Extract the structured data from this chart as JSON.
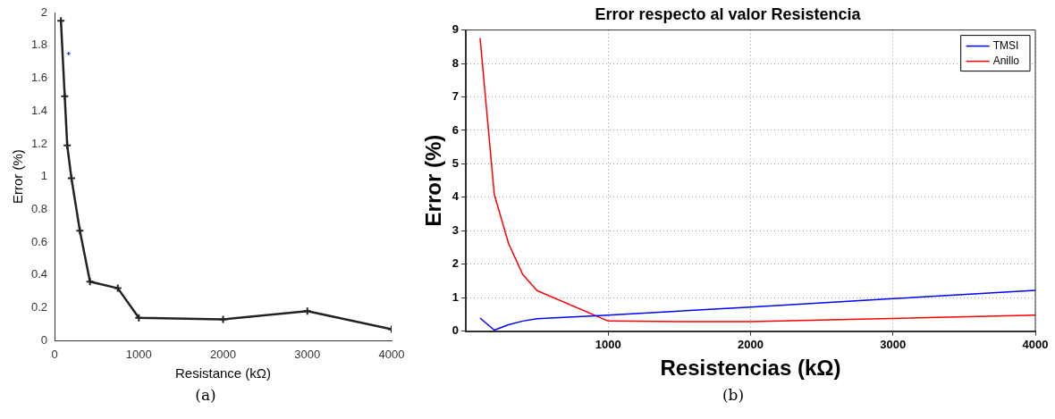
{
  "chart_data": [
    {
      "type": "line",
      "xlabel": "Resistance (kΩ)",
      "ylabel": "Error (%)",
      "xlim": [
        0,
        4000
      ],
      "xticks": [
        0,
        1000,
        2000,
        3000,
        4000
      ],
      "ylim": [
        0,
        2
      ],
      "yticks": [
        0,
        0.2,
        0.4,
        0.6,
        0.8,
        1,
        1.2,
        1.4,
        1.6,
        1.8,
        2
      ],
      "grid": false,
      "legend": false,
      "marker": "cross",
      "annotations": [
        "(a)"
      ],
      "series": [
        {
          "color": "#222222",
          "x": [
            75,
            120,
            150,
            200,
            300,
            420,
            750,
            1000,
            2000,
            3000,
            4000
          ],
          "values": [
            1.95,
            1.49,
            1.19,
            0.99,
            0.67,
            0.36,
            0.32,
            0.14,
            0.13,
            0.18,
            0.07
          ]
        },
        {
          "type": "scatter",
          "color": "#0000ff",
          "x": [
            167
          ],
          "values": [
            1.75
          ]
        }
      ]
    },
    {
      "type": "line",
      "title": "Error respecto al valor Resistencia",
      "xlabel": "Resistencias (kΩ)",
      "ylabel": "Error (%)",
      "xlim": [
        0,
        4000
      ],
      "xticks": [
        1000,
        2000,
        3000,
        4000
      ],
      "ylim": [
        0,
        9
      ],
      "yticks": [
        0,
        1,
        2,
        3,
        4,
        5,
        6,
        7,
        8,
        9
      ],
      "grid": true,
      "legend": "top right",
      "annotations": [
        "(b)"
      ],
      "series": [
        {
          "name": "TMSI",
          "color": "#0000ff",
          "x": [
            100,
            200,
            300,
            400,
            500,
            1000,
            2000,
            3000,
            4000
          ],
          "values": [
            0.39,
            0.03,
            0.19,
            0.3,
            0.37,
            0.48,
            0.72,
            0.97,
            1.22
          ]
        },
        {
          "name": "Anillo",
          "color": "#ff0000",
          "x": [
            100,
            200,
            300,
            400,
            500,
            1000,
            1500,
            2000,
            4000
          ],
          "values": [
            8.76,
            4.08,
            2.62,
            1.69,
            1.21,
            0.3,
            0.28,
            0.28,
            0.48
          ]
        }
      ]
    }
  ]
}
